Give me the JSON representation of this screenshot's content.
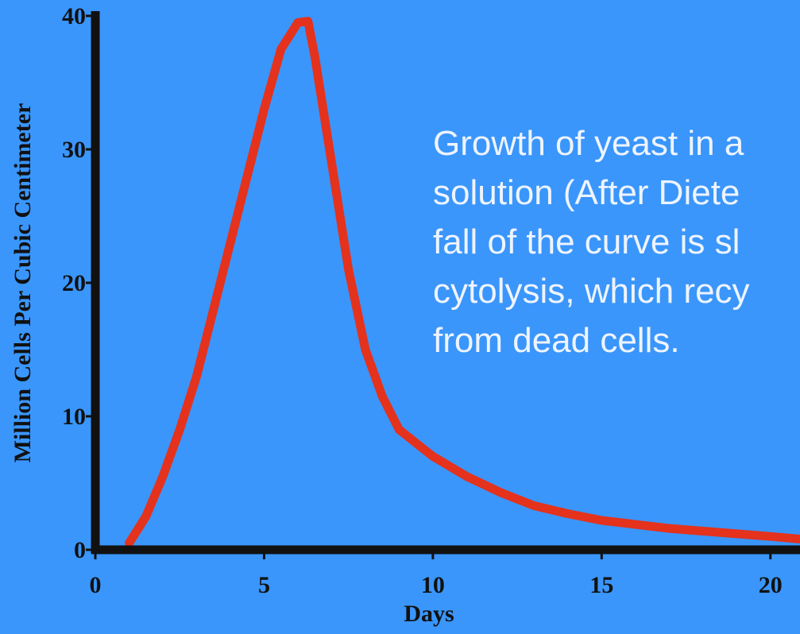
{
  "chart_data": {
    "type": "line",
    "x_label": "Days",
    "y_label": "Million Cells Per Cubic Centimeter",
    "annotation": [
      "Growth of yeast in a",
      "solution (After Diete",
      "fall of the curve is sl",
      "cytolysis, which recy",
      "from dead cells."
    ],
    "x": [
      1,
      1.5,
      2,
      2.5,
      3,
      3.5,
      4,
      4.5,
      5,
      5.5,
      6,
      6.3,
      6.5,
      7,
      7.5,
      8,
      8.5,
      9,
      10,
      11,
      12,
      13,
      14,
      15,
      16,
      17,
      18,
      19,
      20,
      20.9
    ],
    "values": [
      0.5,
      2.5,
      5.5,
      9,
      13,
      18,
      23,
      28,
      33,
      37.5,
      39.5,
      39.6,
      37,
      29,
      21,
      15,
      11.5,
      9,
      7,
      5.5,
      4.3,
      3.3,
      2.7,
      2.2,
      1.9,
      1.6,
      1.4,
      1.2,
      1,
      0.8
    ],
    "color": "#e4321d",
    "xlim": [
      0,
      20.9
    ],
    "ylim": [
      0,
      40
    ],
    "xticks": [
      0,
      5,
      10,
      15,
      20
    ],
    "yticks": [
      0,
      10,
      20,
      30,
      40
    ]
  }
}
